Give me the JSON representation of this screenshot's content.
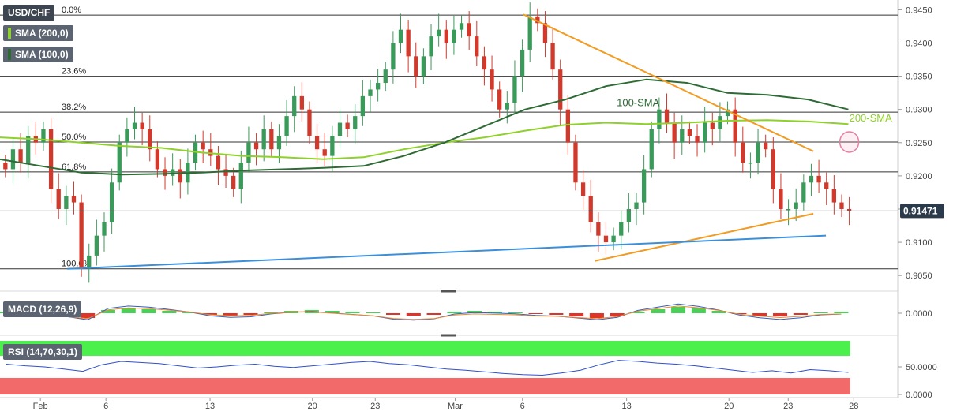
{
  "legend": {
    "pair": "USD/CHF",
    "sma200": "SMA (200,0)",
    "sma100": "SMA (100,0)",
    "macd": "MACD (12,26,9)",
    "rsi": "RSI (14,70,30,1)"
  },
  "colors": {
    "bull": "#3a9a5a",
    "bear": "#d0392b",
    "sma100": "#2e6b35",
    "sma200": "#8ed12a",
    "trend_down": "#f29b20",
    "support_blue": "#3a8fd8",
    "fib_line": "#333333",
    "rsi_overbought": "#4cf04c",
    "rsi_oversold": "#f26a6a",
    "rsi_line": "#2f4fcf",
    "macd_line": "#2e5ec4",
    "signal_line": "#f08a2c",
    "price_tag": "#2b3a4a"
  },
  "annotations": {
    "sma100_label": "100-SMA",
    "sma200_label": "200-SMA"
  },
  "chart_data": {
    "type": "candlestick",
    "title": "USD/CHF",
    "last_price": "0.91471",
    "x_ticks": [
      "Feb",
      "6",
      "13",
      "20",
      "23",
      "Mar",
      "6",
      "13",
      "20",
      "23",
      "28"
    ],
    "price_axis": {
      "range": [
        0.903,
        0.946
      ],
      "ticks": [
        "0.9450",
        "0.9400",
        "0.9350",
        "0.9300",
        "0.9250",
        "0.9200",
        "0.9150",
        "0.9100",
        "0.9050"
      ]
    },
    "fibonacci": [
      {
        "label": "0.0%",
        "price": 0.9442
      },
      {
        "label": "23.6%",
        "price": 0.935
      },
      {
        "label": "38.2%",
        "price": 0.9296
      },
      {
        "label": "50.0%",
        "price": 0.9251
      },
      {
        "label": "61.8%",
        "price": 0.9206
      },
      {
        "label": "100.0%",
        "price": 0.906
      }
    ],
    "price_series": [
      0.921,
      0.924,
      0.922,
      0.926,
      0.925,
      0.927,
      0.918,
      0.915,
      0.917,
      0.916,
      0.906,
      0.908,
      0.911,
      0.913,
      0.919,
      0.925,
      0.927,
      0.928,
      0.927,
      0.924,
      0.921,
      0.92,
      0.921,
      0.919,
      0.922,
      0.925,
      0.924,
      0.923,
      0.921,
      0.92,
      0.918,
      0.922,
      0.925,
      0.924,
      0.927,
      0.924,
      0.926,
      0.929,
      0.932,
      0.93,
      0.926,
      0.924,
      0.923,
      0.926,
      0.928,
      0.927,
      0.929,
      0.932,
      0.933,
      0.934,
      0.936,
      0.94,
      0.942,
      0.938,
      0.935,
      0.938,
      0.941,
      0.942,
      0.94,
      0.942,
      0.943,
      0.941,
      0.938,
      0.936,
      0.933,
      0.93,
      0.931,
      0.935,
      0.939,
      0.944,
      0.943,
      0.94,
      0.936,
      0.93,
      0.925,
      0.919,
      0.917,
      0.913,
      0.911,
      0.91,
      0.911,
      0.913,
      0.915,
      0.916,
      0.921,
      0.927,
      0.93,
      0.928,
      0.925,
      0.927,
      0.926,
      0.925,
      0.928,
      0.927,
      0.929,
      0.93,
      0.925,
      0.922,
      0.922,
      0.925,
      0.924,
      0.918,
      0.915,
      0.915,
      0.916,
      0.919,
      0.92,
      0.919,
      0.918,
      0.916,
      0.915,
      0.9147
    ],
    "sma100": [
      0.9225,
      0.9215,
      0.9205,
      0.9202,
      0.9203,
      0.9205,
      0.9208,
      0.921,
      0.9212,
      0.9215,
      0.923,
      0.925,
      0.9275,
      0.93,
      0.9315,
      0.9335,
      0.9345,
      0.934,
      0.9325,
      0.9322,
      0.9315,
      0.93
    ],
    "sma200": [
      0.9258,
      0.9255,
      0.925,
      0.9245,
      0.9242,
      0.9235,
      0.923,
      0.9228,
      0.9225,
      0.9228,
      0.924,
      0.925,
      0.9258,
      0.9268,
      0.9277,
      0.928,
      0.9278,
      0.928,
      0.9283,
      0.9284,
      0.9282,
      0.9278
    ],
    "trendlines": [
      {
        "name": "falling",
        "from": [
          0.583,
          0.9443
        ],
        "to": [
          0.906,
          0.9237
        ]
      },
      {
        "name": "rising_support",
        "from": [
          0.663,
          0.9072
        ],
        "to": [
          0.906,
          0.9143
        ]
      },
      {
        "name": "long_blue",
        "from": [
          0.075,
          0.906
        ],
        "to": [
          0.92,
          0.911
        ]
      }
    ],
    "macd": {
      "zero_label": "0.0000",
      "histogram": [
        0.2,
        0.3,
        0.1,
        -0.3,
        -0.6,
        0.4,
        0.6,
        0.5,
        0.3,
        0.1,
        -0.2,
        -0.3,
        -0.2,
        0.1,
        0.3,
        0.4,
        0.3,
        0.2,
        0.1,
        -0.2,
        -0.3,
        -0.2,
        0.2,
        0.3,
        0.2,
        0.1,
        -0.1,
        -0.2,
        -0.4,
        -0.6,
        -0.4,
        0.2,
        0.5,
        0.8,
        0.6,
        0.3,
        -0.1,
        -0.3,
        -0.4,
        -0.2,
        0.1,
        0.2
      ]
    },
    "rsi": {
      "ticks": [
        "50.0000",
        "0.0000"
      ],
      "overbought": 70,
      "oversold": 30,
      "values": [
        55,
        52,
        50,
        46,
        42,
        54,
        60,
        58,
        56,
        52,
        48,
        50,
        53,
        55,
        51,
        49,
        52,
        55,
        58,
        60,
        56,
        54,
        50,
        46,
        44,
        41,
        38,
        36,
        35,
        39,
        44,
        54,
        62,
        60,
        57,
        55,
        52,
        48,
        44,
        40,
        43,
        39,
        45,
        43,
        40
      ]
    }
  }
}
